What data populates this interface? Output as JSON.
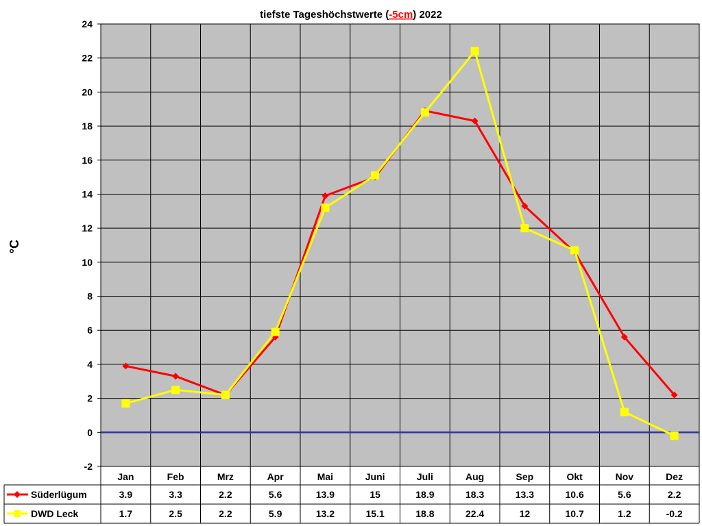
{
  "chart_data": {
    "type": "line",
    "title_prefix": "tiefste Tageshöchstwerte (",
    "title_highlight": "-5cm",
    "title_suffix": ") 2022",
    "highlight_color": "#ff0000",
    "ylabel": "°C",
    "xlabel": "",
    "ylim": [
      -2,
      24
    ],
    "yticks": [
      24,
      22,
      20,
      18,
      16,
      14,
      12,
      10,
      8,
      6,
      4,
      2,
      0,
      -2
    ],
    "grid": true,
    "plot_background": "#c0c0c0",
    "zero_line_color": "#333399",
    "legend_placement": "data-table-left",
    "categories": [
      "Jan",
      "Feb",
      "Mrz",
      "Apr",
      "Mai",
      "Juni",
      "Juli",
      "Aug",
      "Sep",
      "Okt",
      "Nov",
      "Dez"
    ],
    "series": [
      {
        "name": "Süderlügum",
        "color": "#ff0000",
        "marker": "diamond",
        "values": [
          3.9,
          3.3,
          2.2,
          5.6,
          13.9,
          15,
          18.9,
          18.3,
          13.3,
          10.6,
          5.6,
          2.2
        ],
        "labels": [
          "3.9",
          "3.3",
          "2.2",
          "5.6",
          "13.9",
          "15",
          "18.9",
          "18.3",
          "13.3",
          "10.6",
          "5.6",
          "2.2"
        ]
      },
      {
        "name": "DWD Leck",
        "color": "#ffff00",
        "marker": "square",
        "values": [
          1.7,
          2.5,
          2.2,
          5.9,
          13.2,
          15.1,
          18.8,
          22.4,
          12,
          10.7,
          1.2,
          -0.2
        ],
        "labels": [
          "1.7",
          "2.5",
          "2.2",
          "5.9",
          "13.2",
          "15.1",
          "18.8",
          "22.4",
          "12",
          "10.7",
          "1.2",
          "-0.2"
        ]
      }
    ]
  }
}
